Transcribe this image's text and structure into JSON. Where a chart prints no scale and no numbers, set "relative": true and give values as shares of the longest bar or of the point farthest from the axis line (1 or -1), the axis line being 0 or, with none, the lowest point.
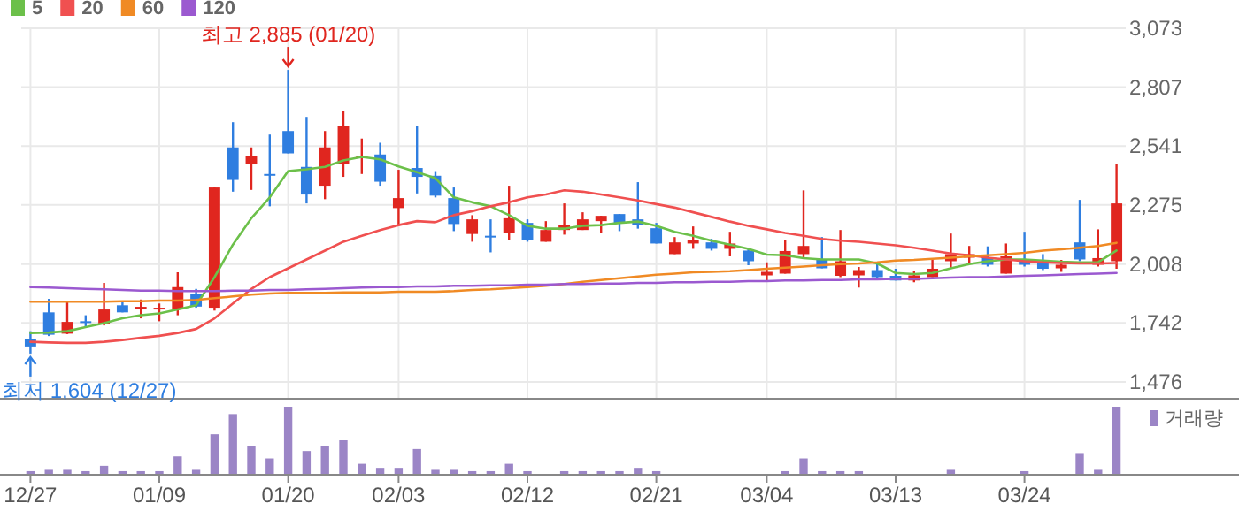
{
  "chart_data": [
    {
      "type": "candlestick",
      "categories": [
        "12/27",
        null,
        null,
        null,
        null,
        null,
        null,
        "01/09",
        null,
        null,
        null,
        null,
        null,
        null,
        "01/20",
        null,
        null,
        null,
        null,
        null,
        "02/03",
        null,
        null,
        null,
        null,
        null,
        null,
        "02/12",
        null,
        null,
        null,
        null,
        null,
        null,
        "02/21",
        null,
        null,
        null,
        null,
        null,
        "03/04",
        null,
        null,
        null,
        null,
        null,
        null,
        "03/13",
        null,
        null,
        null,
        null,
        null,
        null,
        "03/24",
        null,
        null,
        null,
        null,
        null
      ],
      "ohlc": [
        [
          1670,
          1705,
          1604,
          1636
        ],
        [
          1790,
          1851,
          1683,
          1689
        ],
        [
          1694,
          1843,
          1692,
          1747
        ],
        [
          1750,
          1777,
          1723,
          1745
        ],
        [
          1737,
          1923,
          1731,
          1803
        ],
        [
          1822,
          1838,
          1790,
          1790
        ],
        [
          1810,
          1848,
          1763,
          1815
        ],
        [
          1806,
          1830,
          1750,
          1811
        ],
        [
          1803,
          1971,
          1777,
          1904
        ],
        [
          1875,
          1896,
          1811,
          1816
        ],
        [
          1811,
          2354,
          1798,
          2354
        ],
        [
          2535,
          2649,
          2335,
          2388
        ],
        [
          2460,
          2535,
          2343,
          2495
        ],
        [
          2415,
          2593,
          2269,
          2410
        ],
        [
          2609,
          2885,
          2508,
          2508
        ],
        [
          2447,
          2673,
          2282,
          2322
        ],
        [
          2362,
          2609,
          2301,
          2535
        ],
        [
          2460,
          2700,
          2402,
          2633
        ],
        [
          2487,
          2575,
          2415,
          2495
        ],
        [
          2503,
          2556,
          2362,
          2380
        ],
        [
          2261,
          2434,
          2181,
          2306
        ],
        [
          2442,
          2633,
          2327,
          2402
        ],
        [
          2407,
          2428,
          2309,
          2317
        ],
        [
          2306,
          2354,
          2157,
          2189
        ],
        [
          2144,
          2229,
          2109,
          2210
        ],
        [
          2136,
          2210,
          2061,
          2130
        ],
        [
          2149,
          2362,
          2117,
          2215
        ],
        [
          2194,
          2210,
          2109,
          2117
        ],
        [
          2109,
          2202,
          2109,
          2162
        ],
        [
          2162,
          2282,
          2141,
          2186
        ],
        [
          2162,
          2242,
          2162,
          2210
        ],
        [
          2202,
          2226,
          2149,
          2226
        ],
        [
          2234,
          2234,
          2157,
          2194
        ],
        [
          2210,
          2378,
          2168,
          2186
        ],
        [
          2170,
          2194,
          2101,
          2101
        ],
        [
          2053,
          2130,
          2053,
          2106
        ],
        [
          2101,
          2178,
          2077,
          2117
        ],
        [
          2106,
          2122,
          2069,
          2077
        ],
        [
          2077,
          2154,
          2043,
          2101
        ],
        [
          2069,
          2082,
          2003,
          2021
        ],
        [
          1957,
          2016,
          1934,
          1973
        ],
        [
          1965,
          2117,
          1965,
          2067
        ],
        [
          2053,
          2341,
          2037,
          2090
        ],
        [
          2029,
          2130,
          1989,
          1989
        ],
        [
          1955,
          2162,
          1949,
          2021
        ],
        [
          1957,
          1995,
          1902,
          1981
        ],
        [
          1981,
          2016,
          1936,
          1949
        ],
        [
          1955,
          1987,
          1934,
          1934
        ],
        [
          1934,
          1979,
          1926,
          1957
        ],
        [
          1949,
          2029,
          1949,
          1987
        ],
        [
          2021,
          2146,
          1989,
          2053
        ],
        [
          2037,
          2090,
          2013,
          2053
        ],
        [
          2037,
          2088,
          1997,
          2005
        ],
        [
          1965,
          2101,
          1965,
          2043
        ],
        [
          2027,
          2154,
          1997,
          2005
        ],
        [
          2013,
          2053,
          1981,
          1987
        ],
        [
          1989,
          2027,
          1973,
          2005
        ],
        [
          2106,
          2298,
          2021,
          2029
        ],
        [
          2005,
          2165,
          1997,
          2035
        ],
        [
          2021,
          2460,
          1987,
          2282
        ]
      ],
      "colors": [
        "#2f7ee0",
        "#2f7ee0",
        "#e0261f",
        "#2f7ee0",
        "#e0261f",
        "#2f7ee0",
        "#e0261f",
        "#e0261f",
        "#e0261f",
        "#2f7ee0",
        "#e0261f",
        "#2f7ee0",
        "#e0261f",
        "#2f7ee0",
        "#2f7ee0",
        "#2f7ee0",
        "#e0261f",
        "#e0261f",
        "#e0261f",
        "#2f7ee0",
        "#e0261f",
        "#2f7ee0",
        "#2f7ee0",
        "#2f7ee0",
        "#e0261f",
        "#2f7ee0",
        "#e0261f",
        "#2f7ee0",
        "#e0261f",
        "#e0261f",
        "#e0261f",
        "#e0261f",
        "#2f7ee0",
        "#2f7ee0",
        "#2f7ee0",
        "#e0261f",
        "#e0261f",
        "#2f7ee0",
        "#e0261f",
        "#2f7ee0",
        "#e0261f",
        "#e0261f",
        "#e0261f",
        "#2f7ee0",
        "#e0261f",
        "#e0261f",
        "#2f7ee0",
        "#2f7ee0",
        "#e0261f",
        "#e0261f",
        "#e0261f",
        "#e0261f",
        "#2f7ee0",
        "#e0261f",
        "#2f7ee0",
        "#2f7ee0",
        "#e0261f",
        "#2f7ee0",
        "#e0261f",
        "#e0261f"
      ],
      "series": [
        {
          "name": "5",
          "type": "line",
          "color": "#6cc04a",
          "values": [
            1697,
            1699,
            1705,
            1723,
            1741,
            1763,
            1777,
            1785,
            1803,
            1822,
            1949,
            2096,
            2215,
            2309,
            2428,
            2436,
            2447,
            2476,
            2492,
            2481,
            2449,
            2423,
            2396,
            2309,
            2287,
            2269,
            2229,
            2181,
            2168,
            2168,
            2181,
            2184,
            2194,
            2200,
            2181,
            2154,
            2136,
            2114,
            2096,
            2077,
            2051,
            2048,
            2035,
            2029,
            2029,
            2029,
            2011,
            1968,
            1963,
            1968,
            1989,
            2008,
            2021,
            2029,
            2029,
            2024,
            2019,
            2016,
            2016,
            2069
          ]
        },
        {
          "name": "20",
          "type": "line",
          "color": "#f05050",
          "values": [
            1657,
            1654,
            1652,
            1652,
            1657,
            1665,
            1675,
            1684,
            1697,
            1715,
            1763,
            1830,
            1896,
            1949,
            1989,
            2029,
            2069,
            2109,
            2136,
            2162,
            2184,
            2202,
            2197,
            2229,
            2247,
            2269,
            2287,
            2309,
            2322,
            2341,
            2335,
            2322,
            2309,
            2295,
            2279,
            2263,
            2242,
            2221,
            2200,
            2181,
            2165,
            2149,
            2136,
            2122,
            2114,
            2109,
            2101,
            2093,
            2082,
            2069,
            2056,
            2048,
            2037,
            2029,
            2021,
            2016,
            2013,
            2011,
            2011,
            2013
          ]
        },
        {
          "name": "60",
          "type": "line",
          "color": "#f08a24",
          "values": [
            1838,
            1838,
            1838,
            1838,
            1838,
            1840,
            1840,
            1843,
            1843,
            1846,
            1854,
            1862,
            1870,
            1875,
            1878,
            1878,
            1878,
            1880,
            1880,
            1880,
            1883,
            1883,
            1883,
            1886,
            1891,
            1894,
            1899,
            1904,
            1910,
            1918,
            1928,
            1936,
            1944,
            1952,
            1960,
            1965,
            1971,
            1973,
            1976,
            1981,
            1987,
            1992,
            1997,
            2003,
            2008,
            2011,
            2016,
            2024,
            2027,
            2032,
            2037,
            2043,
            2048,
            2053,
            2059,
            2069,
            2075,
            2082,
            2090,
            2104
          ]
        },
        {
          "name": "120",
          "type": "line",
          "color": "#9b59d0",
          "values": [
            1904,
            1902,
            1899,
            1896,
            1894,
            1891,
            1888,
            1888,
            1886,
            1886,
            1886,
            1888,
            1888,
            1891,
            1891,
            1894,
            1896,
            1899,
            1902,
            1904,
            1904,
            1907,
            1907,
            1910,
            1910,
            1912,
            1912,
            1915,
            1915,
            1918,
            1918,
            1920,
            1920,
            1923,
            1923,
            1926,
            1926,
            1928,
            1928,
            1931,
            1931,
            1934,
            1934,
            1936,
            1936,
            1939,
            1939,
            1941,
            1941,
            1944,
            1947,
            1949,
            1949,
            1952,
            1955,
            1957,
            1960,
            1963,
            1965,
            1968
          ]
        }
      ],
      "ylim": [
        1404,
        3073
      ],
      "yticks": [
        {
          "value": 1476,
          "label": "1,476"
        },
        {
          "value": 1742,
          "label": "1,742"
        },
        {
          "value": 2008,
          "label": "2,008"
        },
        {
          "value": 2275,
          "label": "2,275"
        },
        {
          "value": 2541,
          "label": "2,541"
        },
        {
          "value": 2807,
          "label": "2,807"
        },
        {
          "value": 3073,
          "label": "3,073"
        }
      ],
      "grid": true,
      "legend": "top left",
      "tick_labels": "y",
      "annotations": [
        {
          "text": "최고 2,885 (01/20)",
          "x": "01/20",
          "y": 2885
        },
        {
          "text": "최저 1,604 (12/27)",
          "x": "12/27",
          "y": 1604
        }
      ]
    },
    {
      "type": "bar",
      "categories": [
        "12/27",
        null,
        null,
        null,
        null,
        null,
        null,
        "01/09",
        null,
        null,
        null,
        null,
        null,
        null,
        "01/20",
        null,
        null,
        null,
        null,
        null,
        "02/03",
        null,
        null,
        null,
        null,
        null,
        null,
        "02/12",
        null,
        null,
        null,
        null,
        null,
        null,
        "02/21",
        null,
        null,
        null,
        null,
        null,
        "03/04",
        null,
        null,
        null,
        null,
        null,
        null,
        "03/13",
        null,
        null,
        null,
        null,
        null,
        null,
        "03/24",
        null,
        null,
        null,
        null,
        null
      ],
      "relative": true,
      "legend": "top right",
      "tick_labels": "x",
      "series": [
        {
          "name": "거래량",
          "color": "#9b85c6",
          "values": [
            0.04,
            0.06,
            0.06,
            0.04,
            0.12,
            0.04,
            0.04,
            0.04,
            0.26,
            0.06,
            0.59,
            0.89,
            0.42,
            0.23,
            1,
            0.34,
            0.42,
            0.5,
            0.15,
            0.09,
            0.09,
            0.37,
            0.06,
            0.06,
            0.04,
            0.04,
            0.15,
            0.04,
            0,
            0.04,
            0.04,
            0.04,
            0.04,
            0.09,
            0.04,
            0,
            0,
            0,
            0,
            0,
            0,
            0.04,
            0.23,
            0.04,
            0.04,
            0.04,
            0,
            0,
            0,
            0,
            0.06,
            0,
            0,
            0,
            0.04,
            0,
            0,
            0.31,
            0.06,
            1
          ]
        }
      ]
    }
  ]
}
